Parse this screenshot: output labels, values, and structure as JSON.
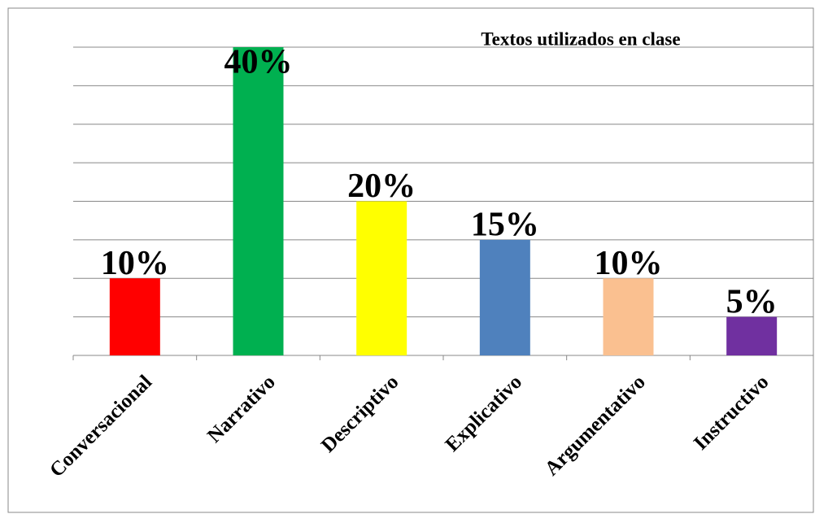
{
  "chart_data": {
    "type": "bar",
    "title": "Textos utilizados en clase",
    "categories": [
      "Conversacional",
      "Narrativo",
      "Descriptivo",
      "Explicativo",
      "Argumentativo",
      "Instructivo"
    ],
    "values": [
      10,
      40,
      20,
      15,
      10,
      5
    ],
    "value_labels": [
      "10%",
      "40%",
      "20%",
      "15%",
      "10%",
      "5%"
    ],
    "colors": [
      "#ff0000",
      "#00b050",
      "#ffff00",
      "#4f81bd",
      "#fac090",
      "#7030a0"
    ],
    "ylim": [
      0,
      40
    ],
    "yticks": [
      0,
      5,
      10,
      15,
      20,
      25,
      30,
      35,
      40
    ],
    "grid": true
  }
}
